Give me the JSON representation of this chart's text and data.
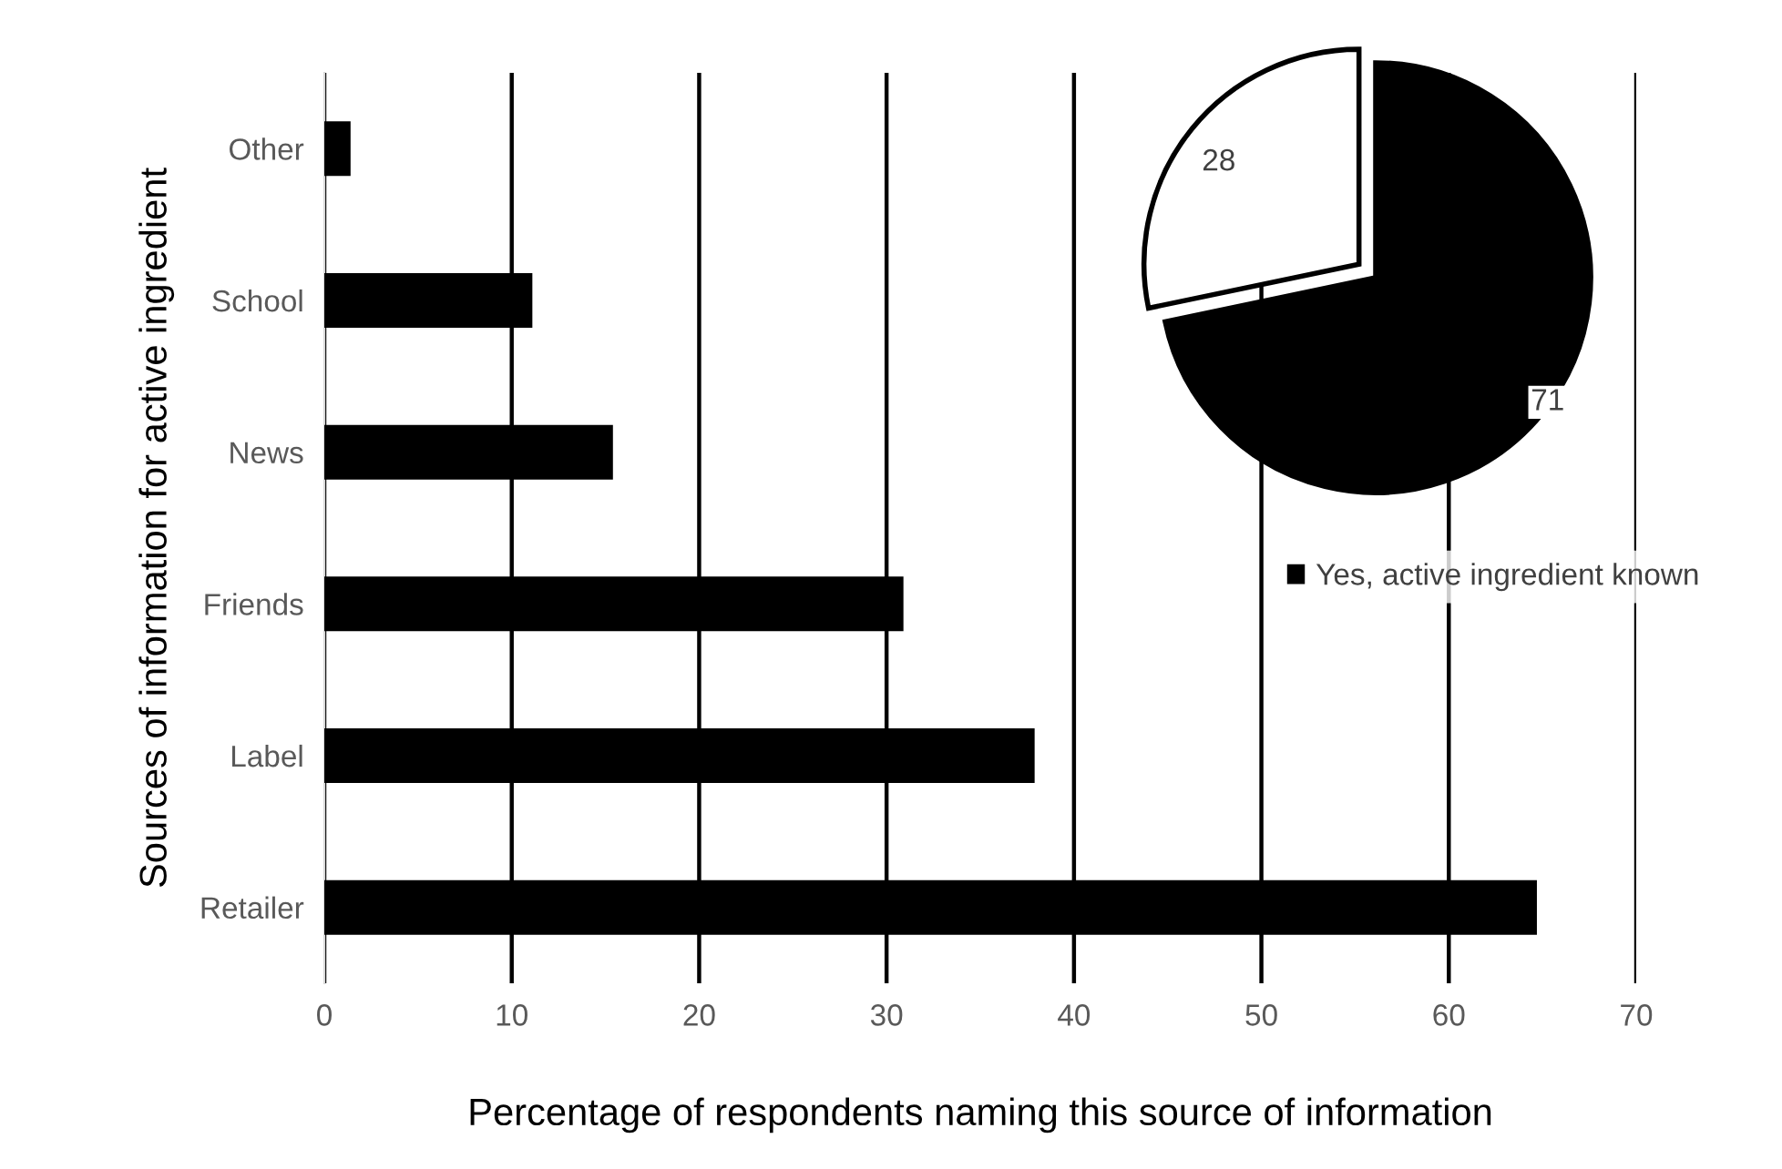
{
  "chart_data": [
    {
      "type": "bar",
      "orientation": "horizontal",
      "categories": [
        "Other",
        "School",
        "News",
        "Friends",
        "Label",
        "Retailer"
      ],
      "values": [
        1.4,
        11.1,
        15.4,
        30.9,
        37.9,
        64.7
      ],
      "color": "#000000",
      "xlim": [
        0,
        70
      ],
      "xticks": [
        0,
        10,
        20,
        30,
        40,
        50,
        60,
        70
      ],
      "grid": "x",
      "xlabel": "Percentage of respondents naming this source of information",
      "ylabel": "Sources of information for active ingredient"
    },
    {
      "type": "pie",
      "categories": [
        "Yes, active ingredient known",
        null
      ],
      "values": [
        71,
        28
      ],
      "colors": [
        "#000000",
        "#ffffff"
      ],
      "data_labels": true,
      "legend": "bottom right"
    }
  ]
}
